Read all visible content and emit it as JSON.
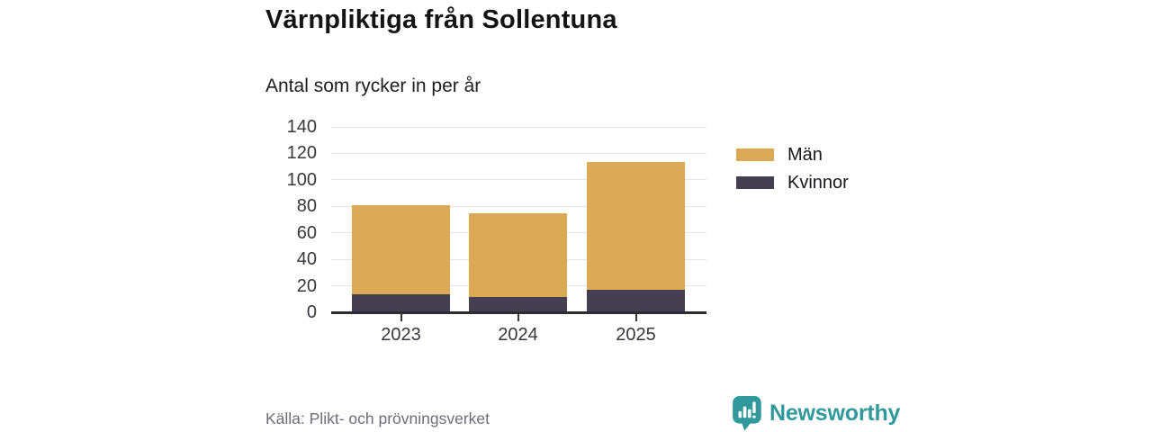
{
  "header": {
    "title": "Värnpliktiga från Sollentuna",
    "subtitle": "Antal som rycker in per år"
  },
  "chart_data": {
    "type": "bar",
    "stacked": true,
    "categories": [
      "2023",
      "2024",
      "2025"
    ],
    "series": [
      {
        "name": "Män",
        "color": "#d9a955",
        "values": [
          67,
          63,
          97
        ]
      },
      {
        "name": "Kvinnor",
        "color": "#444051",
        "values": [
          13,
          11,
          16
        ]
      }
    ],
    "stack_order_bottom_to_top": [
      "Kvinnor",
      "Män"
    ],
    "totals": [
      80,
      74,
      113
    ],
    "title": "Värnpliktiga från Sollentuna",
    "subtitle": "Antal som rycker in per år",
    "xlabel": "",
    "ylabel": "",
    "ylim": [
      0,
      140
    ],
    "yticks": [
      0,
      20,
      40,
      60,
      80,
      100,
      120,
      140
    ],
    "grid": true,
    "legend_position": "right"
  },
  "footer": {
    "source": "Källa: Plikt- och prövningsverket",
    "brand": "Newsworthy"
  },
  "colors": {
    "men": "#d9a955",
    "women": "#444051",
    "grid": "#e4e4e6",
    "axis": "#2d2c33",
    "brand_teal": "#31999b",
    "source_text": "#6f6d79"
  }
}
